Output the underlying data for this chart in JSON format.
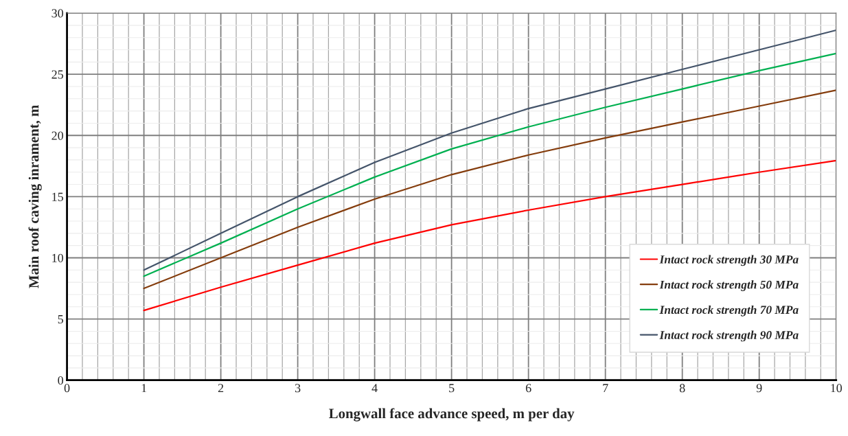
{
  "chart_data": {
    "type": "line",
    "xlabel": "Longwall face advance speed, m per day",
    "ylabel": "Main roof caving inrament, m",
    "x": [
      1,
      2,
      3,
      4,
      5,
      6,
      7,
      8,
      9,
      10
    ],
    "series": [
      {
        "name": "Intact rock strength 30 MPa",
        "color": "#ff0000",
        "values": [
          5.7,
          7.6,
          9.4,
          11.2,
          12.7,
          13.9,
          15.0,
          16.0,
          17.0,
          17.95
        ]
      },
      {
        "name": "Intact rock strength 50 MPa",
        "color": "#843c0c",
        "values": [
          7.5,
          10.0,
          12.5,
          14.8,
          16.8,
          18.4,
          19.8,
          21.1,
          22.4,
          23.7
        ]
      },
      {
        "name": "Intact rock strength 70 MPa",
        "color": "#00b050",
        "values": [
          8.5,
          11.2,
          14.0,
          16.6,
          18.9,
          20.7,
          22.3,
          23.8,
          25.3,
          26.7
        ]
      },
      {
        "name": "Intact rock strength 90 MPa",
        "color": "#44546a",
        "values": [
          9.0,
          12.0,
          15.0,
          17.8,
          20.2,
          22.2,
          23.8,
          25.4,
          27.0,
          28.6
        ]
      }
    ],
    "xlim": [
      0,
      10
    ],
    "xticks": [
      0,
      1,
      2,
      3,
      4,
      5,
      6,
      7,
      8,
      9,
      10
    ],
    "ylim": [
      0,
      30
    ],
    "yticks": [
      0,
      5,
      10,
      15,
      20,
      25,
      30
    ],
    "grid": true,
    "legend": "bottom right",
    "marker": "none",
    "line_style": "solid"
  }
}
